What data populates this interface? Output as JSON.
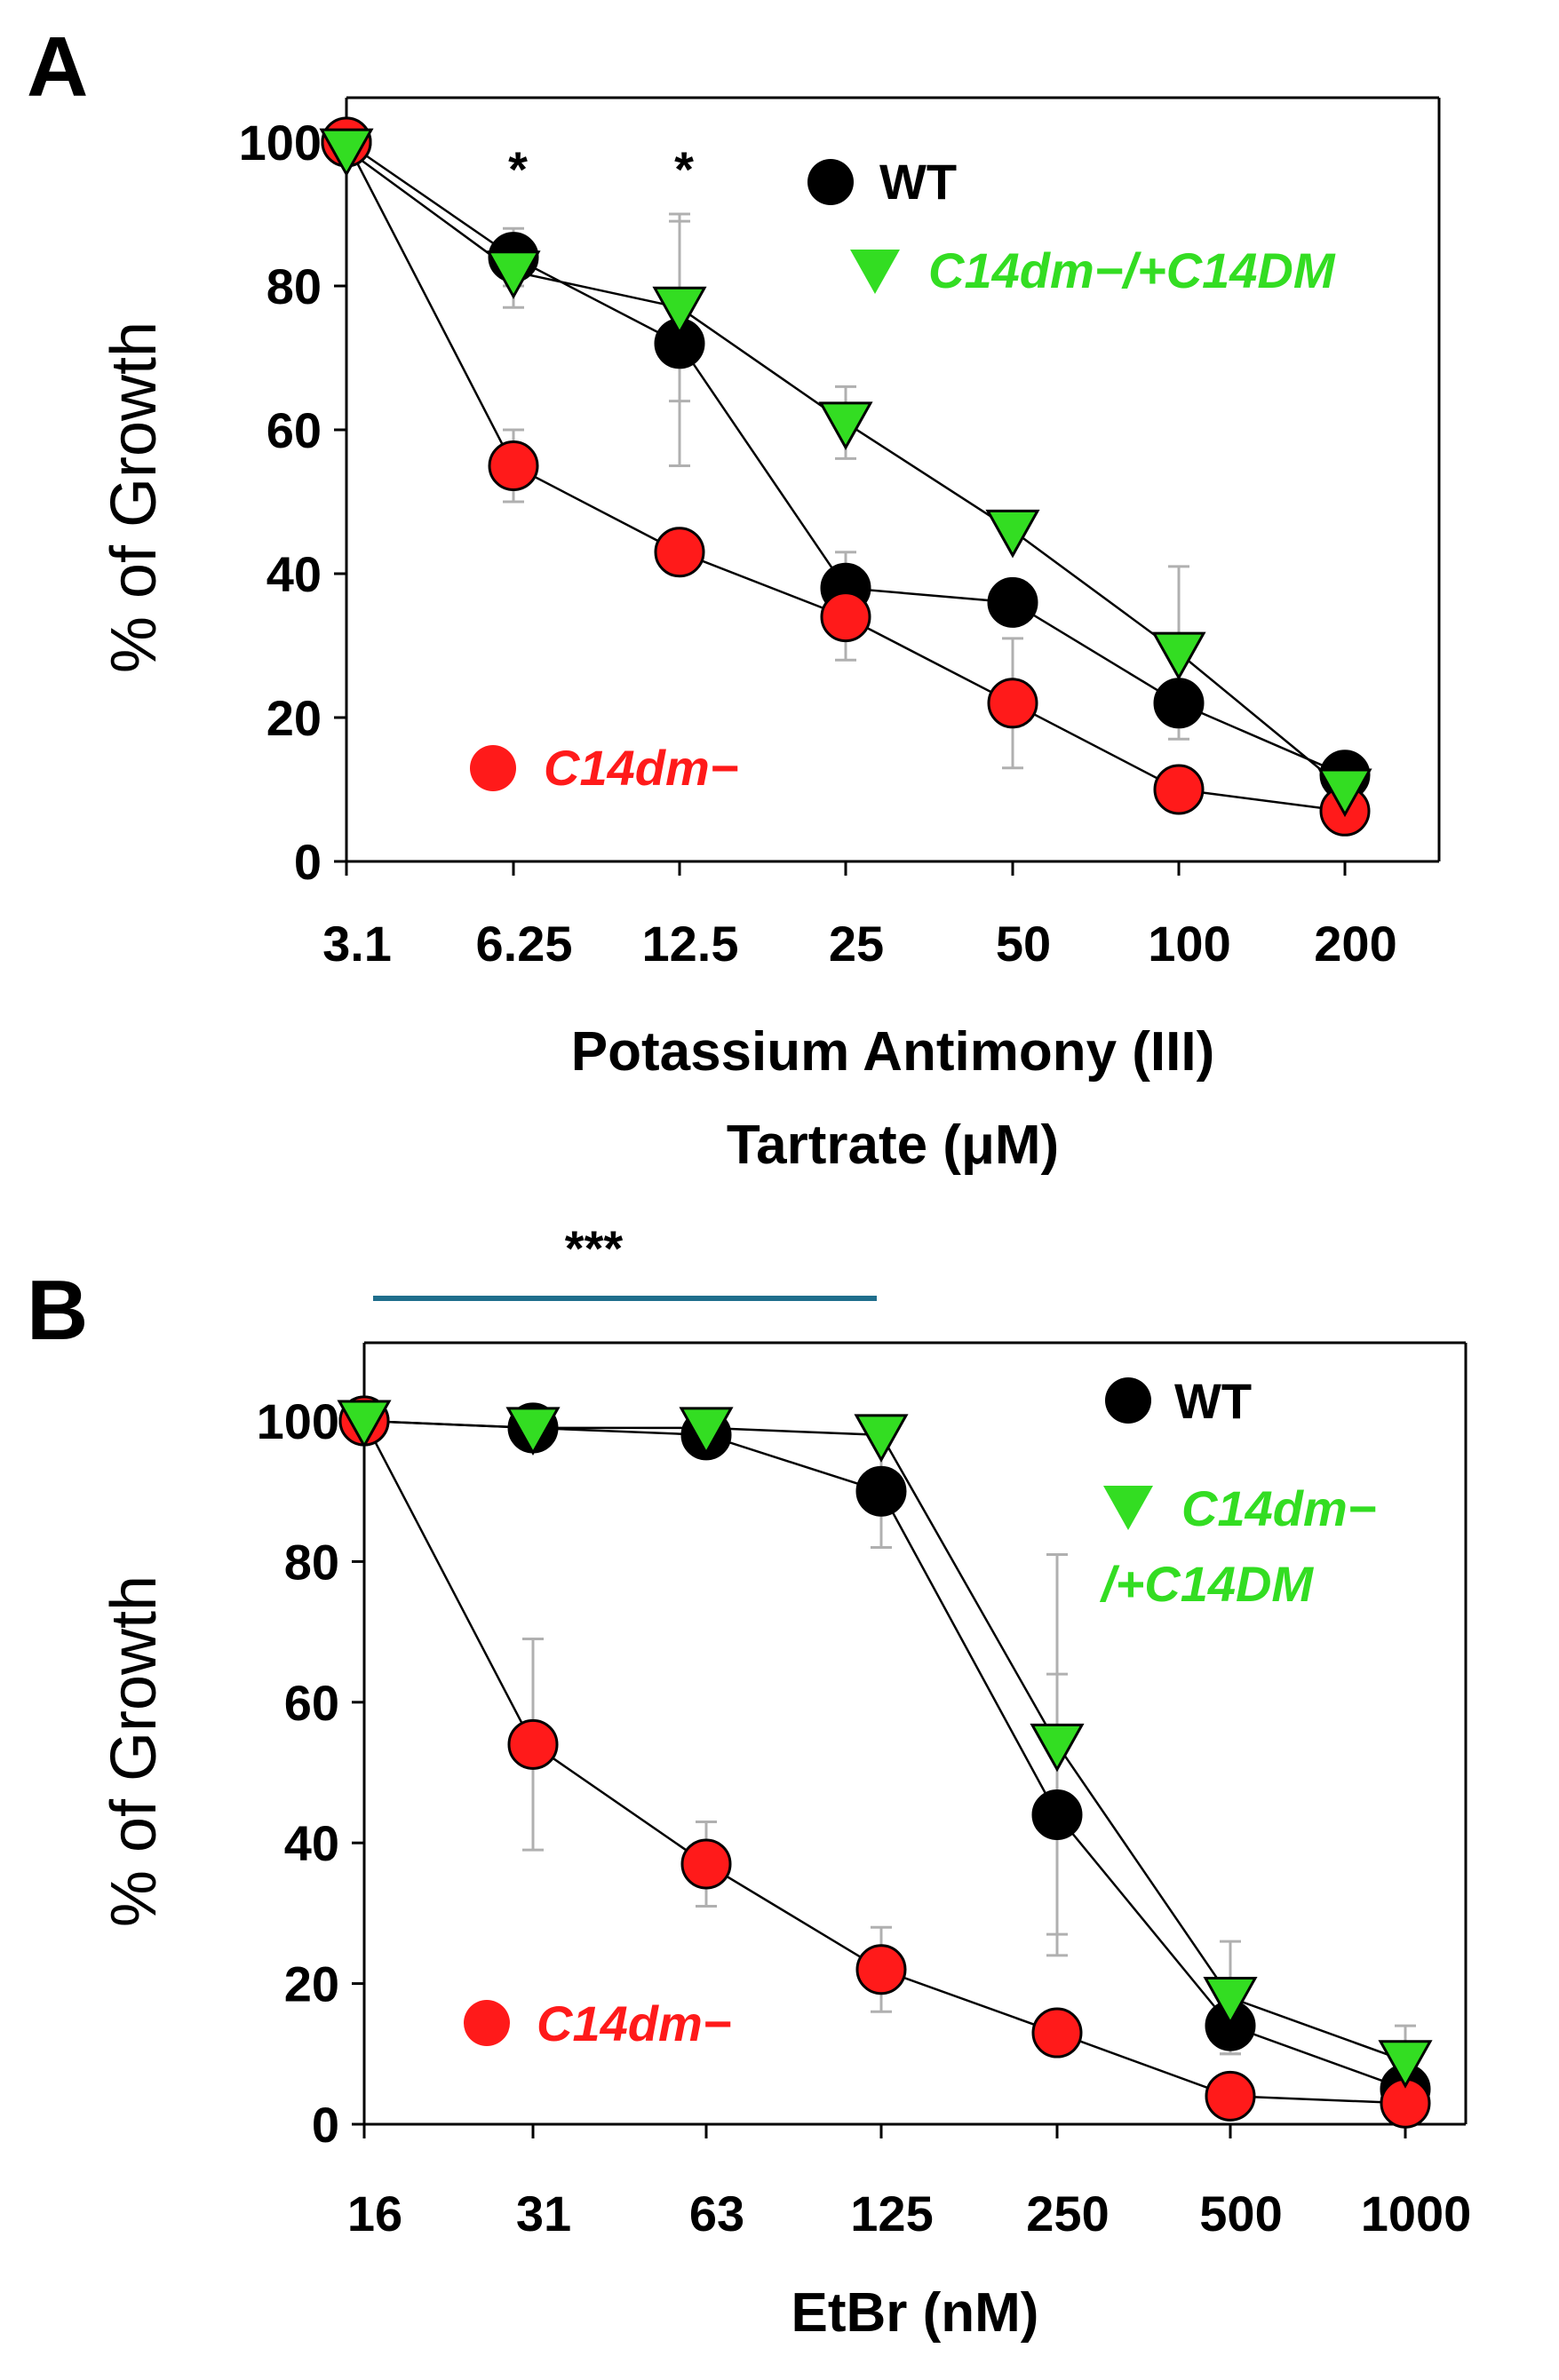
{
  "colors": {
    "wt": "#000000",
    "mutant": "#ff1a1a",
    "complement": "#33dd22",
    "errorbar": "#b0b0b0",
    "significance_bar": "#1f6e8c"
  },
  "chart_data": [
    {
      "panel": "A",
      "type": "line",
      "xlabel_lines": [
        "Potassium Antimony (III)",
        "Tartrate (μM)"
      ],
      "ylabel": "% of Growth",
      "categories": [
        "3.1",
        "6.25",
        "12.5",
        "25",
        "50",
        "100",
        "200"
      ],
      "ylim": [
        0,
        100
      ],
      "yticks": [
        0,
        20,
        40,
        60,
        80,
        100
      ],
      "grid": false,
      "legend_placement": "top-right",
      "series": [
        {
          "key": "wt",
          "name": "WT",
          "marker": "circle",
          "legend_suffix": "",
          "values": [
            100,
            84,
            72,
            38,
            36,
            22,
            12
          ],
          "errors": [
            0,
            4,
            17,
            5,
            0,
            0,
            0
          ]
        },
        {
          "key": "mutant",
          "name": "C14dm",
          "legend_suffix": "−",
          "marker": "circle",
          "values": [
            100,
            55,
            43,
            34,
            22,
            10,
            7
          ],
          "errors": [
            0,
            5,
            0,
            6,
            9,
            0,
            0
          ]
        },
        {
          "key": "complement",
          "name": "C14dm",
          "legend_suffix": "−/+C14DM",
          "marker": "triangle-down",
          "values": [
            99,
            82,
            77,
            61,
            46,
            29,
            10
          ],
          "errors": [
            0,
            5,
            13,
            5,
            0,
            12,
            0
          ]
        }
      ],
      "annotations": [
        {
          "text": "*",
          "category_index": 1
        },
        {
          "text": "*",
          "category_index": 2
        }
      ]
    },
    {
      "panel": "B",
      "type": "line",
      "xlabel_lines": [
        "EtBr (nM)"
      ],
      "ylabel": "% of Growth",
      "categories": [
        "16",
        "31",
        "63",
        "125",
        "250",
        "500",
        "1000"
      ],
      "ylim": [
        0,
        100
      ],
      "yticks": [
        0,
        20,
        40,
        60,
        80,
        100
      ],
      "grid": false,
      "legend_placement": "top-right",
      "series": [
        {
          "key": "wt",
          "name": "WT",
          "marker": "circle",
          "legend_suffix": "",
          "values": [
            100,
            99,
            98,
            90,
            44,
            14,
            5
          ],
          "errors": [
            0,
            0,
            0,
            8,
            20,
            4,
            0
          ]
        },
        {
          "key": "mutant",
          "name": "C14dm",
          "legend_suffix": "−",
          "marker": "circle",
          "values": [
            100,
            54,
            37,
            22,
            13,
            4,
            3
          ],
          "errors": [
            0,
            15,
            6,
            6,
            0,
            0,
            0
          ]
        },
        {
          "key": "complement",
          "name": "C14dm",
          "legend_suffix": "−",
          "legend_line2": "/+C14DM",
          "marker": "triangle-down",
          "values": [
            100,
            99,
            99,
            98,
            54,
            18,
            9
          ],
          "errors": [
            0,
            0,
            0,
            0,
            27,
            8,
            5
          ]
        }
      ],
      "annotations": [
        {
          "text": "***",
          "span": [
            0,
            3
          ]
        }
      ]
    }
  ]
}
